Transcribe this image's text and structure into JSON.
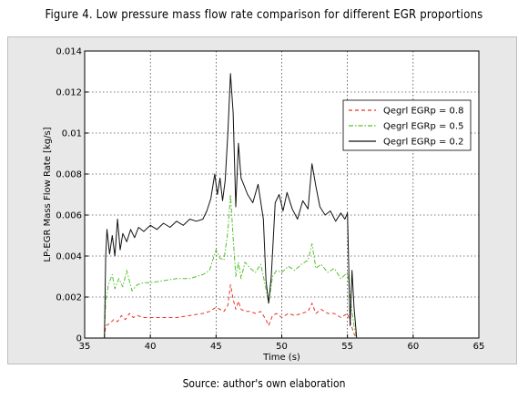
{
  "figure": {
    "title": "Figure 4. Low pressure mass flow rate comparison for different EGR proportions",
    "source": "Source: author's own elaboration"
  },
  "chart_data": {
    "type": "line",
    "title": "",
    "xlabel": "Time (s)",
    "ylabel": "LP-EGR Mass Flow Rate [kg/s]",
    "xlim": [
      35,
      65
    ],
    "ylim": [
      0,
      0.014
    ],
    "xticks": [
      35,
      40,
      45,
      50,
      55,
      60,
      65
    ],
    "yticks": [
      0,
      0.002,
      0.004,
      0.006,
      0.008,
      0.01,
      0.012,
      0.014
    ],
    "xtick_labels": [
      "35",
      "40",
      "45",
      "50",
      "55",
      "60",
      "65"
    ],
    "ytick_labels": [
      "0",
      "0.002",
      "0.004",
      "0.006",
      "0.008",
      "0.01",
      "0.012",
      "0.014"
    ],
    "grid": true,
    "legend_position": "top-right",
    "series": [
      {
        "name": "Qegrl EGRp = 0.8",
        "color": "#e8332a",
        "dash": "dashed",
        "x": [
          36.5,
          36.6,
          36.9,
          37.2,
          37.5,
          37.8,
          38.1,
          38.4,
          38.7,
          39,
          39.5,
          40,
          41,
          42,
          43,
          44,
          44.5,
          45,
          45.3,
          45.6,
          45.9,
          46.1,
          46.3,
          46.5,
          46.7,
          46.9,
          47.2,
          47.6,
          48,
          48.4,
          48.8,
          49,
          49.3,
          49.6,
          50,
          50.5,
          51,
          51.5,
          52,
          52.3,
          52.6,
          53,
          53.5,
          54,
          54.5,
          55,
          55.3,
          55.5,
          55.7
        ],
        "y": [
          0,
          0.0006,
          0.0007,
          0.0009,
          0.0008,
          0.0011,
          0.0009,
          0.0012,
          0.001,
          0.0011,
          0.001,
          0.001,
          0.001,
          0.001,
          0.0011,
          0.0012,
          0.0013,
          0.0015,
          0.0014,
          0.0013,
          0.0016,
          0.0026,
          0.0019,
          0.0014,
          0.0018,
          0.0014,
          0.0013,
          0.0013,
          0.0012,
          0.0013,
          0.0009,
          0.0006,
          0.0011,
          0.0012,
          0.001,
          0.0012,
          0.0011,
          0.0012,
          0.0013,
          0.0017,
          0.0012,
          0.0014,
          0.0012,
          0.0012,
          0.001,
          0.0012,
          0.0006,
          0.0002,
          0
        ]
      },
      {
        "name": "Qegrl EGRp = 0.5",
        "color": "#55c02b",
        "dash": "dashdot",
        "x": [
          36.5,
          36.6,
          36.8,
          37.1,
          37.3,
          37.6,
          37.9,
          38.2,
          38.6,
          39,
          39.5,
          40,
          41,
          42,
          43,
          44,
          44.5,
          45,
          45.3,
          45.6,
          45.9,
          46.1,
          46.3,
          46.5,
          46.7,
          46.9,
          47.2,
          47.6,
          48,
          48.4,
          48.8,
          49,
          49.3,
          49.6,
          50,
          50.5,
          51,
          51.5,
          52,
          52.3,
          52.6,
          53,
          53.5,
          54,
          54.5,
          55,
          55.3,
          55.5,
          55.7
        ],
        "y": [
          0,
          0.0018,
          0.0026,
          0.0031,
          0.0024,
          0.0029,
          0.0025,
          0.0033,
          0.0023,
          0.0026,
          0.0027,
          0.0027,
          0.0028,
          0.0029,
          0.0029,
          0.0031,
          0.0033,
          0.0043,
          0.0039,
          0.0038,
          0.0052,
          0.007,
          0.0049,
          0.003,
          0.0037,
          0.0029,
          0.0037,
          0.0034,
          0.0032,
          0.0036,
          0.0024,
          0.0017,
          0.003,
          0.0033,
          0.0032,
          0.0035,
          0.0033,
          0.0036,
          0.0038,
          0.0046,
          0.0034,
          0.0036,
          0.0032,
          0.0034,
          0.0029,
          0.0032,
          0.0015,
          0.0006,
          0
        ]
      },
      {
        "name": "Qegrl EGRp = 0.2",
        "color": "#111111",
        "dash": "solid",
        "x": [
          36.5,
          36.6,
          36.7,
          36.9,
          37.1,
          37.3,
          37.5,
          37.7,
          37.9,
          38.2,
          38.5,
          38.8,
          39.1,
          39.5,
          40,
          40.5,
          41,
          41.5,
          42,
          42.5,
          43,
          43.5,
          44,
          44.3,
          44.6,
          44.9,
          45.1,
          45.3,
          45.5,
          45.7,
          45.9,
          46.1,
          46.3,
          46.5,
          46.7,
          46.9,
          47.1,
          47.4,
          47.8,
          48.2,
          48.6,
          48.8,
          49,
          49.2,
          49.5,
          49.8,
          50.1,
          50.4,
          50.8,
          51.2,
          51.6,
          52,
          52.3,
          52.6,
          52.9,
          53.3,
          53.7,
          54.1,
          54.5,
          54.8,
          55,
          55.2,
          55.35,
          55.5,
          55.7
        ],
        "y": [
          0,
          0.004,
          0.0053,
          0.0041,
          0.005,
          0.004,
          0.0058,
          0.0043,
          0.0051,
          0.0047,
          0.0053,
          0.0049,
          0.0054,
          0.0052,
          0.0055,
          0.0053,
          0.0056,
          0.0054,
          0.0057,
          0.0055,
          0.0058,
          0.0057,
          0.0058,
          0.0062,
          0.0068,
          0.008,
          0.007,
          0.0078,
          0.0067,
          0.0077,
          0.01,
          0.0129,
          0.011,
          0.0064,
          0.0095,
          0.0078,
          0.0075,
          0.007,
          0.0066,
          0.0075,
          0.0058,
          0.0028,
          0.0017,
          0.003,
          0.0066,
          0.007,
          0.0062,
          0.0071,
          0.0063,
          0.0058,
          0.0067,
          0.0063,
          0.0085,
          0.0074,
          0.0064,
          0.006,
          0.0062,
          0.0057,
          0.0061,
          0.0058,
          0.0061,
          0.0006,
          0.0033,
          0.0015,
          0
        ]
      }
    ]
  }
}
